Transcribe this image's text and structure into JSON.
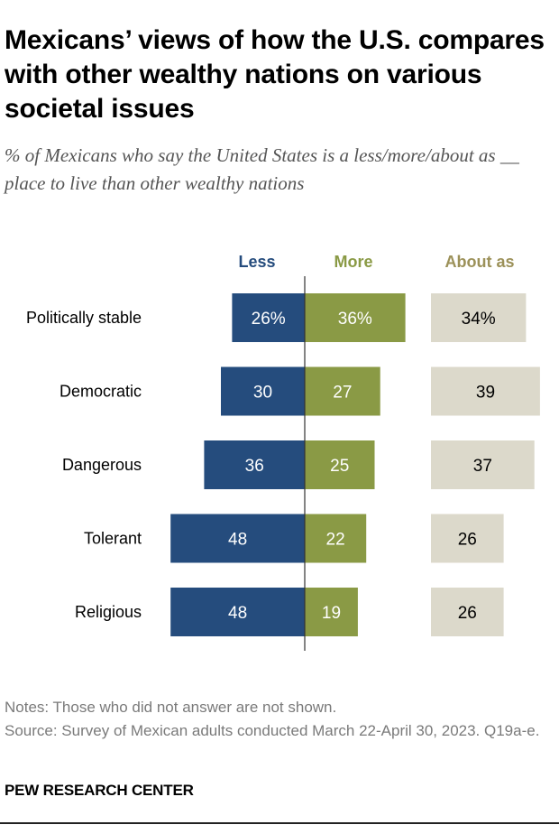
{
  "title": "Mexicans’ views of how the U.S. compares with other wealthy nations on various societal issues",
  "subtitle": "% of Mexicans who say the United States is a less/more/about as __ place to live than other wealthy nations",
  "notes": "Notes: Those who did not answer are not shown.",
  "source": "Source: Survey of Mexican adults conducted March 22-April 30, 2023. Q19a-e.",
  "brand": "PEW RESEARCH CENTER",
  "colors": {
    "less": "#254c7d",
    "more": "#8a9a45",
    "about": "#dcd9cb",
    "about_header": "#9c9159"
  },
  "chart_data": {
    "type": "bar",
    "categories": [
      "Politically stable",
      "Democratic",
      "Dangerous",
      "Tolerant",
      "Religious"
    ],
    "series": [
      {
        "name": "Less",
        "values": [
          26,
          30,
          36,
          48,
          48
        ],
        "labels": [
          "26%",
          "30",
          "36",
          "48",
          "48"
        ]
      },
      {
        "name": "More",
        "values": [
          36,
          27,
          25,
          22,
          19
        ],
        "labels": [
          "36%",
          "27",
          "25",
          "22",
          "19"
        ]
      },
      {
        "name": "About as",
        "values": [
          34,
          39,
          37,
          26,
          26
        ],
        "labels": [
          "34%",
          "39",
          "37",
          "26",
          "26"
        ]
      }
    ],
    "ylim": [
      0,
      100
    ]
  }
}
